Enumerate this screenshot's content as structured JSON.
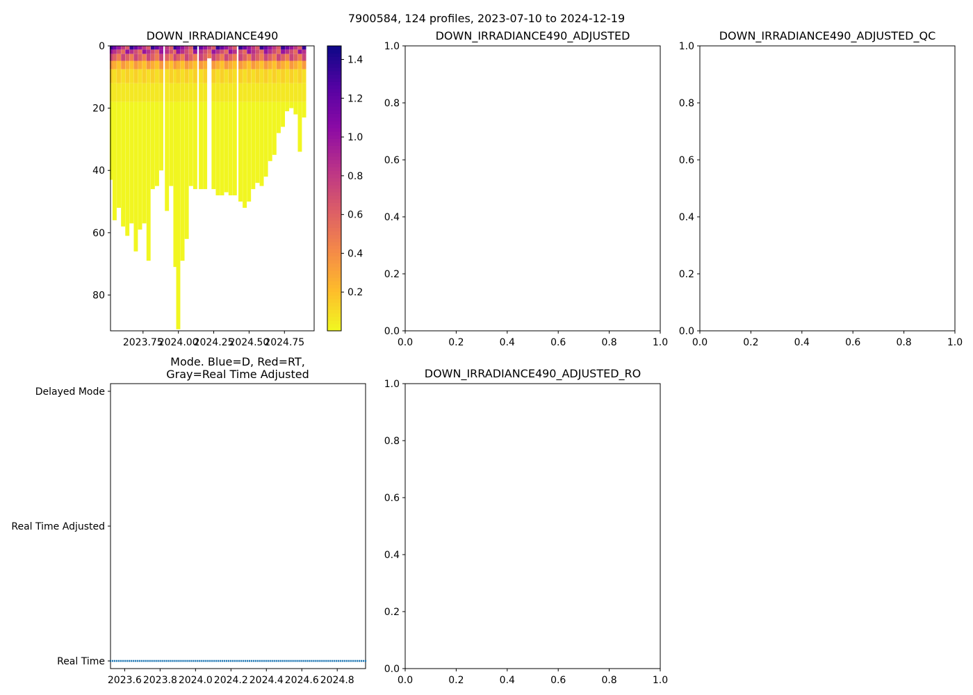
{
  "figure": {
    "suptitle": "7900584, 124 profiles, 2023-07-10 to 2024-12-19"
  },
  "chart_data": [
    {
      "id": "irradiance",
      "type": "heatmap",
      "title": "DOWN_IRRADIANCE490",
      "xlabel": "",
      "ylabel": "",
      "xlim": [
        2023.52,
        2024.96
      ],
      "ylim": [
        91.5,
        0
      ],
      "xticks": [
        2023.75,
        2024.0,
        2024.25,
        2024.5,
        2024.75
      ],
      "xtick_labels": [
        "2023.75",
        "2024.00",
        "2024.25",
        "2024.50",
        "2024.75"
      ],
      "yticks": [
        0,
        20,
        40,
        60,
        80
      ],
      "ytick_labels": [
        "0",
        "20",
        "40",
        "60",
        "80"
      ],
      "colormap": "plasma",
      "colormap_reversed": true,
      "colorbar": {
        "vmin": 0.0,
        "vmax": 1.47,
        "ticks": [
          0.2,
          0.4,
          0.6,
          0.8,
          1.0,
          1.2,
          1.4
        ],
        "tick_labels": [
          "0.2",
          "0.4",
          "0.6",
          "0.8",
          "1.0",
          "1.2",
          "1.4"
        ]
      },
      "profile_depth_estimate": [
        {
          "x": 2023.53,
          "max_depth": 43
        },
        {
          "x": 2023.55,
          "max_depth": 56
        },
        {
          "x": 2023.58,
          "max_depth": 52
        },
        {
          "x": 2023.61,
          "max_depth": 58
        },
        {
          "x": 2023.64,
          "max_depth": 61
        },
        {
          "x": 2023.67,
          "max_depth": 57
        },
        {
          "x": 2023.7,
          "max_depth": 66
        },
        {
          "x": 2023.73,
          "max_depth": 59
        },
        {
          "x": 2023.76,
          "max_depth": 57
        },
        {
          "x": 2023.79,
          "max_depth": 69
        },
        {
          "x": 2023.82,
          "max_depth": 46
        },
        {
          "x": 2023.85,
          "max_depth": 45
        },
        {
          "x": 2023.88,
          "max_depth": 40
        },
        {
          "x": 2023.92,
          "max_depth": 53
        },
        {
          "x": 2023.95,
          "max_depth": 45
        },
        {
          "x": 2023.98,
          "max_depth": 71
        },
        {
          "x": 2024.0,
          "max_depth": 91
        },
        {
          "x": 2024.03,
          "max_depth": 69
        },
        {
          "x": 2024.06,
          "max_depth": 62
        },
        {
          "x": 2024.09,
          "max_depth": 45
        },
        {
          "x": 2024.12,
          "max_depth": 46
        },
        {
          "x": 2024.16,
          "max_depth": 46
        },
        {
          "x": 2024.19,
          "max_depth": 46
        },
        {
          "x": 2024.22,
          "max_depth": 4
        },
        {
          "x": 2024.25,
          "max_depth": 46
        },
        {
          "x": 2024.28,
          "max_depth": 48
        },
        {
          "x": 2024.31,
          "max_depth": 48
        },
        {
          "x": 2024.34,
          "max_depth": 47
        },
        {
          "x": 2024.37,
          "max_depth": 48
        },
        {
          "x": 2024.4,
          "max_depth": 48
        },
        {
          "x": 2024.44,
          "max_depth": 50
        },
        {
          "x": 2024.47,
          "max_depth": 52
        },
        {
          "x": 2024.5,
          "max_depth": 50
        },
        {
          "x": 2024.53,
          "max_depth": 46
        },
        {
          "x": 2024.56,
          "max_depth": 44
        },
        {
          "x": 2024.59,
          "max_depth": 45
        },
        {
          "x": 2024.62,
          "max_depth": 42
        },
        {
          "x": 2024.65,
          "max_depth": 37
        },
        {
          "x": 2024.68,
          "max_depth": 35
        },
        {
          "x": 2024.71,
          "max_depth": 28
        },
        {
          "x": 2024.74,
          "max_depth": 26
        },
        {
          "x": 2024.77,
          "max_depth": 21
        },
        {
          "x": 2024.8,
          "max_depth": 20
        },
        {
          "x": 2024.83,
          "max_depth": 22
        },
        {
          "x": 2024.86,
          "max_depth": 34
        },
        {
          "x": 2024.89,
          "max_depth": 23
        }
      ]
    },
    {
      "id": "adjusted",
      "type": "scatter",
      "title": "DOWN_IRRADIANCE490_ADJUSTED",
      "xlim": [
        0,
        1
      ],
      "ylim": [
        0,
        1
      ],
      "xticks": [
        "0.0",
        "0.2",
        "0.4",
        "0.6",
        "0.8",
        "1.0"
      ],
      "yticks": [
        "0.0",
        "0.2",
        "0.4",
        "0.6",
        "0.8",
        "1.0"
      ],
      "points": []
    },
    {
      "id": "adjusted_qc",
      "type": "scatter",
      "title": "DOWN_IRRADIANCE490_ADJUSTED_QC",
      "xlim": [
        0,
        1
      ],
      "ylim": [
        0,
        1
      ],
      "xticks": [
        "0.0",
        "0.2",
        "0.4",
        "0.6",
        "0.8",
        "1.0"
      ],
      "yticks": [
        "0.0",
        "0.2",
        "0.4",
        "0.6",
        "0.8",
        "1.0"
      ],
      "points": []
    },
    {
      "id": "mode",
      "type": "scatter",
      "title": "Mode. Blue=D, Red=RT,\nGray=Real Time Adjusted",
      "xlim": [
        2023.52,
        2024.96
      ],
      "xticks": [
        2023.6,
        2023.8,
        2024.0,
        2024.2,
        2024.4,
        2024.6,
        2024.8
      ],
      "xtick_labels": [
        "2023.6",
        "2023.8",
        "2024.0",
        "2024.2",
        "2024.4",
        "2024.6",
        "2024.8"
      ],
      "y_categories": [
        "Real Time",
        "Real Time Adjusted",
        "Delayed Mode"
      ],
      "marker_color": "#1f77b4",
      "profiles": {
        "count": 124,
        "x_start": 2023.52,
        "x_end": 2024.96,
        "y": "Real Time"
      }
    },
    {
      "id": "adjusted_ro",
      "type": "scatter",
      "title": "DOWN_IRRADIANCE490_ADJUSTED_RO",
      "xlim": [
        0,
        1
      ],
      "ylim": [
        0,
        1
      ],
      "xticks": [
        "0.0",
        "0.2",
        "0.4",
        "0.6",
        "0.8",
        "1.0"
      ],
      "yticks": [
        "0.0",
        "0.2",
        "0.4",
        "0.6",
        "0.8",
        "1.0"
      ],
      "points": []
    }
  ]
}
